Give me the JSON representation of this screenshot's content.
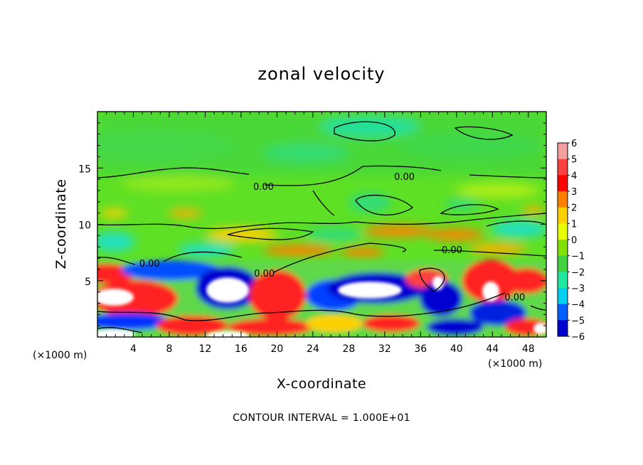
{
  "chart_data": {
    "type": "heatmap",
    "title": "zonal velocity",
    "xlabel": "X-coordinate",
    "ylabel": "Z-coordinate",
    "x_unit": "(×1000 m)",
    "xlim": [
      0,
      50
    ],
    "ylim": [
      0,
      20
    ],
    "x_ticks": [
      4,
      8,
      12,
      16,
      20,
      24,
      28,
      32,
      36,
      40,
      44,
      48
    ],
    "y_ticks": [
      5,
      10,
      15
    ],
    "colorbar": {
      "ticks": [
        6,
        5,
        4,
        3,
        2,
        1,
        0,
        -1,
        -2,
        -3,
        -4,
        -5,
        -6
      ],
      "colors": [
        "#f4a0a0",
        "#ff4040",
        "#ff0000",
        "#ff8000",
        "#ffd000",
        "#e6ff00",
        "#80e000",
        "#40d040",
        "#20e8a0",
        "#00d0f0",
        "#0060ff",
        "#0000d0",
        "#7000a0"
      ]
    },
    "contour_labels": [
      {
        "text": "0.00",
        "x": 34.2,
        "z": 14.2
      },
      {
        "text": "0.00",
        "x": 18.5,
        "z": 13.3
      },
      {
        "text": "0.00",
        "x": 39.5,
        "z": 7.7
      },
      {
        "text": "0.00",
        "x": 5.8,
        "z": 6.5
      },
      {
        "text": "0.00",
        "x": 18.6,
        "z": 5.6
      },
      {
        "text": "0.00",
        "x": 46.5,
        "z": 3.5
      }
    ],
    "footer": "CONTOUR INTERVAL = 1.000E+01"
  }
}
